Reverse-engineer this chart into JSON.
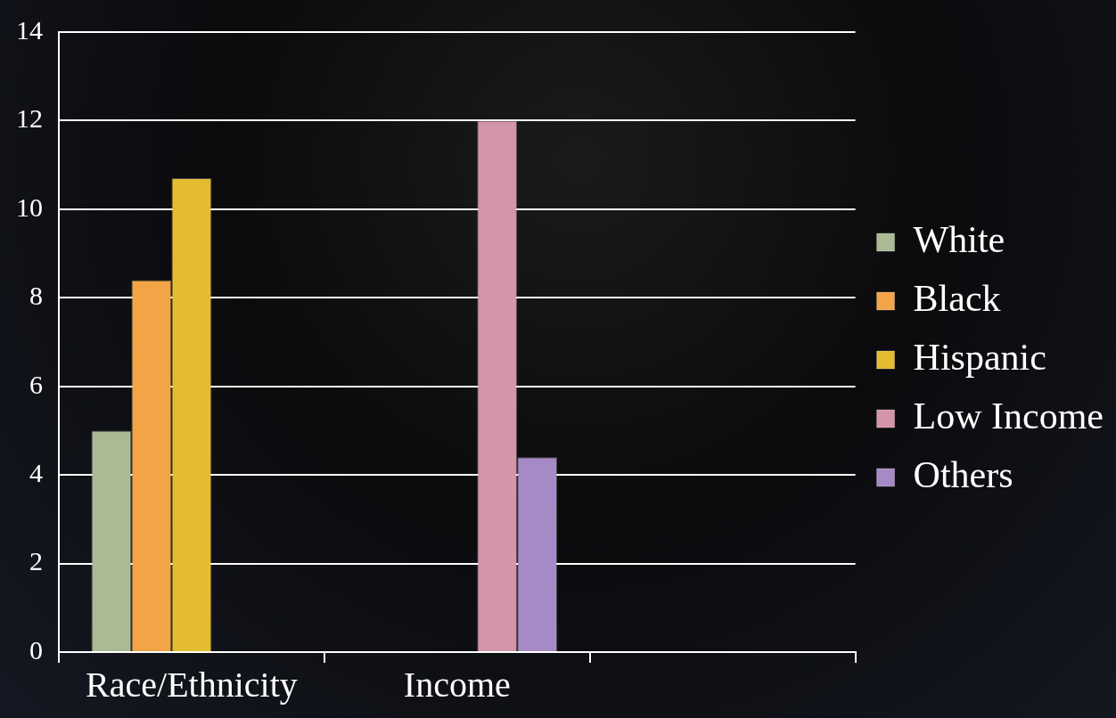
{
  "chart_data": {
    "type": "bar",
    "categories": [
      "Race/Ethnicity",
      "Income",
      null
    ],
    "series": [
      {
        "name": "White",
        "color": "#a9ba94",
        "values": [
          5.0,
          null,
          null
        ]
      },
      {
        "name": "Black",
        "color": "#f3a447",
        "values": [
          8.4,
          null,
          null
        ]
      },
      {
        "name": "Hispanic",
        "color": "#e4bc2f",
        "values": [
          10.7,
          null,
          null
        ]
      },
      {
        "name": "Low Income",
        "color": "#d494aa",
        "values": [
          null,
          12.0,
          null
        ]
      },
      {
        "name": "Others",
        "color": "#a68ac6",
        "values": [
          null,
          4.4,
          null
        ]
      }
    ],
    "ylim": [
      0,
      14
    ],
    "yticks": [
      0,
      2,
      4,
      6,
      8,
      10,
      12,
      14
    ],
    "grid": "y",
    "legend": "right"
  }
}
